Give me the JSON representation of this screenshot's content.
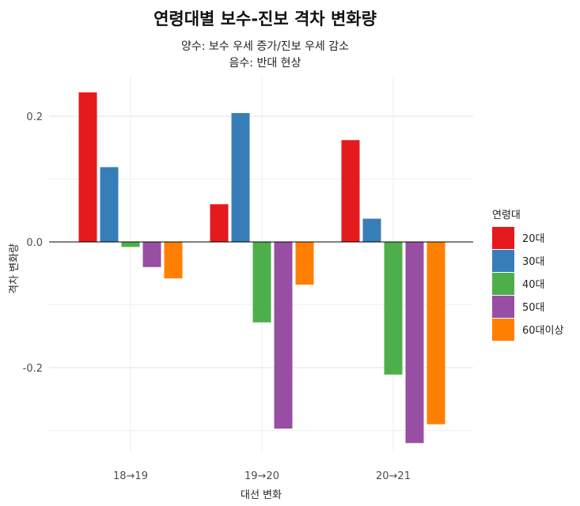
{
  "title": "연령대별 보수-진보 격차 변화량",
  "subtitle_lines": [
    "양수: 보수 우세 증가/진보 우세 감소",
    "음수: 반대 현상"
  ],
  "chart_data": {
    "type": "bar",
    "categories": [
      "18→19",
      "19→20",
      "20→21"
    ],
    "series": [
      {
        "name": "20대",
        "color": "#E41A1C",
        "values": [
          0.238,
          0.06,
          0.162
        ]
      },
      {
        "name": "30대",
        "color": "#377EB8",
        "values": [
          0.119,
          0.205,
          0.037
        ]
      },
      {
        "name": "40대",
        "color": "#4DAF4A",
        "values": [
          -0.008,
          -0.128,
          -0.211
        ]
      },
      {
        "name": "50대",
        "color": "#984EA3",
        "values": [
          -0.04,
          -0.297,
          -0.32
        ]
      },
      {
        "name": "60대이상",
        "color": "#FF7F00",
        "values": [
          -0.058,
          -0.068,
          -0.29
        ]
      }
    ],
    "xlabel": "대선 변화",
    "ylabel": "격차 변화량",
    "ylim": [
      -0.31,
      0.24
    ],
    "yticks": [
      0.2,
      0.0,
      -0.2
    ],
    "ytick_labels": [
      "0.2",
      "0.0",
      "-0.2"
    ],
    "grid": true,
    "legend": {
      "title": "연령대",
      "position": "right"
    }
  }
}
